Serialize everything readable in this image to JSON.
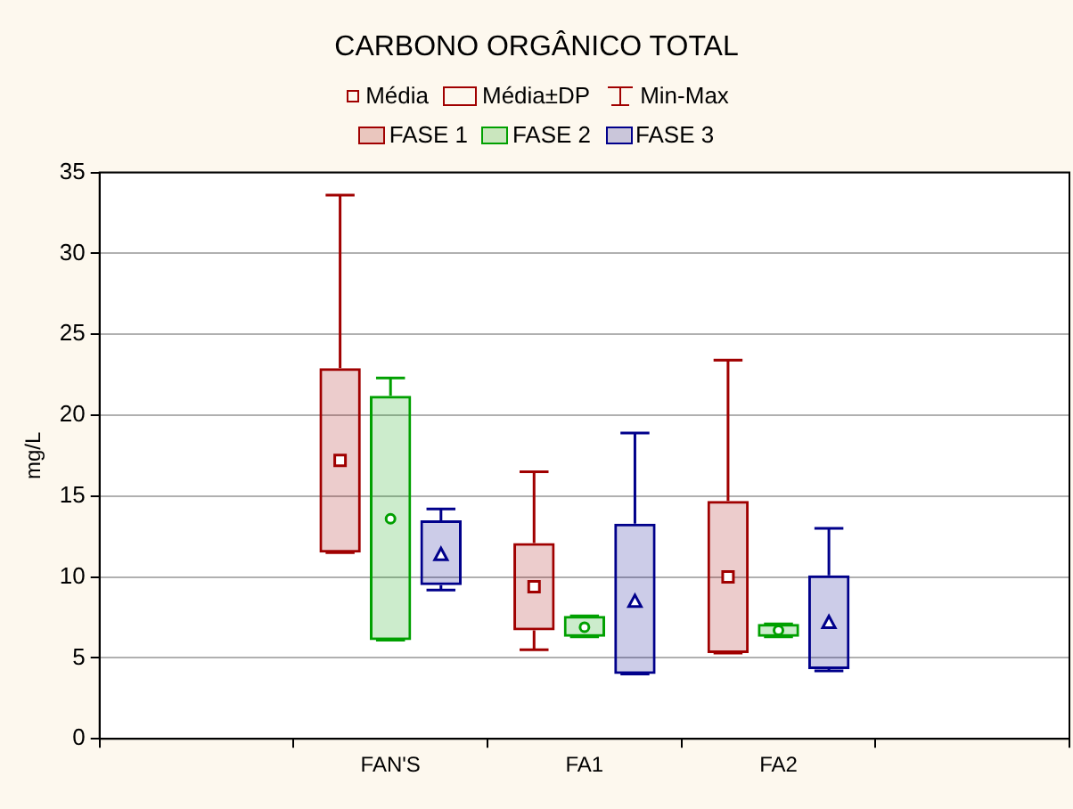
{
  "chart_data": {
    "type": "box",
    "title": "CARBONO ORGÂNICO TOTAL",
    "ylabel": "mg/L",
    "annotations": [
      "Média",
      "Média±DP",
      "Min-Max"
    ],
    "categories": [
      null,
      "FAN'S",
      "FA1",
      "FA2",
      null
    ],
    "ylim": [
      0,
      35
    ],
    "yticks": [
      0,
      5,
      10,
      15,
      20,
      25,
      30,
      35
    ],
    "grid": "y",
    "legend": "top",
    "series": [
      {
        "name": "FASE 1",
        "color": "#a00000",
        "marker": "square",
        "boxes": [
          null,
          {
            "low": 11.5,
            "q1": 11.5,
            "median": null,
            "q3": 22.9,
            "high": 33.6,
            "mean": 17.2
          },
          {
            "low": 5.5,
            "q1": 6.7,
            "median": null,
            "q3": 12.1,
            "high": 16.5,
            "mean": 9.4
          },
          {
            "low": 5.3,
            "q1": 5.3,
            "median": null,
            "q3": 14.7,
            "high": 23.4,
            "mean": 10.0
          },
          null
        ]
      },
      {
        "name": "FASE 2",
        "color": "#00a000",
        "marker": "circle",
        "boxes": [
          null,
          {
            "low": 6.1,
            "q1": 6.1,
            "median": null,
            "q3": 21.2,
            "high": 22.3,
            "mean": 13.6
          },
          {
            "low": 6.3,
            "q1": 6.3,
            "median": null,
            "q3": 7.6,
            "high": 7.6,
            "mean": 6.9
          },
          {
            "low": 6.3,
            "q1": 6.3,
            "median": null,
            "q3": 7.1,
            "high": 7.1,
            "mean": 6.7
          },
          null
        ]
      },
      {
        "name": "FASE 3",
        "color": "#00008b",
        "marker": "triangle",
        "boxes": [
          null,
          {
            "low": 9.2,
            "q1": 9.5,
            "median": null,
            "q3": 13.5,
            "high": 14.2,
            "mean": 11.4
          },
          {
            "low": 4.0,
            "q1": 4.0,
            "median": null,
            "q3": 13.3,
            "high": 18.9,
            "mean": 8.5
          },
          {
            "low": 4.2,
            "q1": 4.3,
            "median": null,
            "q3": 10.1,
            "high": 13.0,
            "mean": 7.2
          },
          null
        ]
      }
    ]
  }
}
